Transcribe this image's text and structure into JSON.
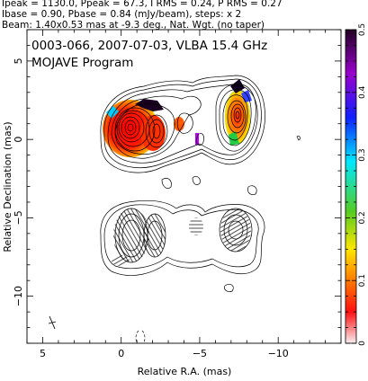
{
  "header": {
    "line1": "Ipeak = 1130.0, Ppeak = 67.3, I RMS = 0.24, P RMS = 0.27",
    "line2": "Ibase = 0.90, Pbase = 0.84 (mJy/beam), steps: x 2",
    "line3": "Beam: 1.40x0.53 mas at -9.3 deg., Nat. Wgt. (no taper)"
  },
  "plot": {
    "title": "0003-066, 2007-07-03, VLBA 15.4 GHz",
    "program": "MOJAVE Program",
    "xlabel": "Relative R.A. (mas)",
    "ylabel": "Relative Declination (mas)",
    "xlim": [
      6,
      -14
    ],
    "ylim": [
      -13,
      7
    ],
    "xticks": [
      5,
      0,
      -5,
      -10
    ],
    "yticks": [
      5,
      0,
      -5,
      -10
    ]
  },
  "colorbar": {
    "range": [
      0,
      0.5
    ],
    "ticks": [
      0,
      0.1,
      0.2,
      0.3,
      0.4,
      0.5
    ],
    "colors": [
      "#f2e6ea",
      "#ff0000",
      "#ff8800",
      "#ffff00",
      "#33cc33",
      "#00ffff",
      "#0000ff",
      "#9900cc",
      "#330044"
    ]
  },
  "chart_data": {
    "type": "heatmap",
    "title": "0003-066, 2007-07-03, VLBA 15.4 GHz",
    "subtitle": "MOJAVE Program",
    "xlabel": "Relative R.A. (mas)",
    "ylabel": "Relative Declination (mas)",
    "xlim": [
      6,
      -14
    ],
    "ylim": [
      -13,
      7
    ],
    "x_reversed": true,
    "total_intensity_peaks": [
      {
        "x": 0.0,
        "y": 0.6
      },
      {
        "x": -1.3,
        "y": 0.3
      },
      {
        "x": -6.6,
        "y": 1.6
      }
    ],
    "contour_levels_mJy_per_beam_base": 0.9,
    "contour_step_factor": 2,
    "fractional_polarization_colorscale": [
      0,
      0.5
    ],
    "beam": {
      "major_mas": 1.4,
      "minor_mas": 0.53,
      "pa_deg": -9.3
    }
  }
}
